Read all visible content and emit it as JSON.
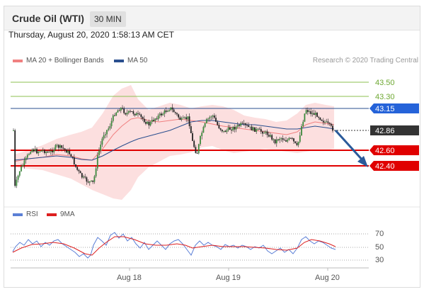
{
  "header": {
    "title": "Crude Oil (WTI)",
    "timeframe": "30 MIN"
  },
  "timestamp": "Thursday, August 20, 2020 1:58:13 AM CET",
  "legend": {
    "ma20_label": "MA 20 + Bollinger Bands",
    "ma20_color": "#f08080",
    "ma50_label": "MA 50",
    "ma50_color": "#2a4f8f"
  },
  "research_credit": "Research © 2020 Trading Central",
  "rsi_legend": {
    "rsi_label": "RSI",
    "rsi_color": "#5b7fd6",
    "ma_label": "9MA",
    "ma_color": "#dd1f1f"
  },
  "chart_data": {
    "type": "candlestick",
    "price_levels": [
      {
        "value": 43.5,
        "label": "43.50",
        "kind": "resistance-green",
        "color": "#6ea832"
      },
      {
        "value": 43.3,
        "label": "43.30",
        "kind": "resistance-green",
        "color": "#6ea832"
      },
      {
        "value": 43.15,
        "label": "43.15",
        "kind": "pivot",
        "color": "#2563d9"
      },
      {
        "value": 42.86,
        "label": "42.86",
        "kind": "current",
        "color": "#333333"
      },
      {
        "value": 42.6,
        "label": "42.60",
        "kind": "support",
        "color": "#e00000"
      },
      {
        "value": 42.4,
        "label": "42.40",
        "kind": "support",
        "color": "#e00000"
      }
    ],
    "x_tick_labels": [
      "Aug 18",
      "Aug 19",
      "Aug 20"
    ],
    "rsi_levels": [
      "70",
      "50",
      "30"
    ],
    "forecast": "down toward 42.40"
  }
}
